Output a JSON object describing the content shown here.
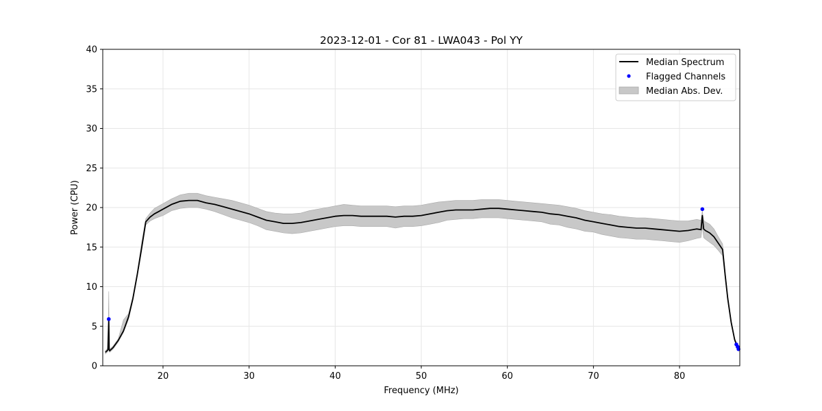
{
  "chart_data": {
    "type": "line",
    "title": "2023-12-01 - Cor 81 - LWA043 - Pol YY",
    "xlabel": "Frequency (MHz)",
    "ylabel": "Power (CPU)",
    "xlim": [
      13,
      87
    ],
    "ylim": [
      0,
      40
    ],
    "xticks": [
      20,
      30,
      40,
      50,
      60,
      70,
      80
    ],
    "yticks": [
      0,
      5,
      10,
      15,
      20,
      25,
      30,
      35,
      40
    ],
    "grid": true,
    "legend_position": "top-right",
    "series": [
      {
        "name": "Median Spectrum",
        "kind": "line",
        "color": "#000000",
        "x": [
          13.3,
          13.6,
          13.7,
          13.75,
          13.8,
          14.2,
          14.8,
          15.4,
          16.0,
          16.5,
          17.0,
          17.5,
          18.0,
          18.5,
          19.0,
          19.5,
          20.0,
          21.0,
          22.0,
          23.0,
          24.0,
          25.0,
          26.0,
          27.0,
          28.0,
          29.0,
          30.0,
          31.0,
          32.0,
          33.0,
          34.0,
          35.0,
          36.0,
          37.0,
          38.0,
          39.0,
          40.0,
          41.0,
          42.0,
          43.0,
          44.0,
          45.0,
          46.0,
          47.0,
          48.0,
          49.0,
          50.0,
          51.0,
          52.0,
          53.0,
          54.0,
          55.0,
          56.0,
          57.0,
          58.0,
          59.0,
          60.0,
          61.0,
          62.0,
          63.0,
          64.0,
          65.0,
          66.0,
          67.0,
          68.0,
          69.0,
          70.0,
          71.0,
          72.0,
          73.0,
          74.0,
          75.0,
          76.0,
          77.0,
          78.0,
          79.0,
          80.0,
          81.0,
          82.0,
          82.5,
          82.65,
          82.8,
          83.0,
          83.5,
          84.0,
          84.5,
          85.0,
          85.3,
          85.6,
          86.0,
          86.4,
          86.8
        ],
        "y": [
          1.7,
          2.0,
          5.8,
          2.0,
          1.9,
          2.3,
          3.2,
          4.4,
          6.2,
          8.5,
          11.5,
          14.8,
          18.2,
          18.8,
          19.2,
          19.5,
          19.8,
          20.4,
          20.8,
          20.9,
          20.9,
          20.6,
          20.4,
          20.1,
          19.8,
          19.5,
          19.2,
          18.8,
          18.4,
          18.2,
          18.0,
          18.0,
          18.1,
          18.3,
          18.5,
          18.7,
          18.9,
          19.0,
          19.0,
          18.9,
          18.9,
          18.9,
          18.9,
          18.8,
          18.9,
          18.9,
          19.0,
          19.2,
          19.4,
          19.6,
          19.7,
          19.7,
          19.7,
          19.8,
          19.9,
          19.9,
          19.8,
          19.7,
          19.6,
          19.5,
          19.4,
          19.2,
          19.1,
          18.9,
          18.7,
          18.4,
          18.2,
          18.0,
          17.8,
          17.6,
          17.5,
          17.4,
          17.4,
          17.3,
          17.2,
          17.1,
          17.0,
          17.1,
          17.3,
          17.2,
          19.0,
          17.3,
          17.1,
          16.8,
          16.3,
          15.5,
          14.7,
          11.5,
          8.5,
          5.5,
          3.3,
          2.2
        ]
      },
      {
        "name": "Flagged Channels",
        "kind": "scatter",
        "color": "#0000ff",
        "x": [
          13.7,
          82.65,
          86.6,
          86.75,
          86.85
        ],
        "y": [
          5.9,
          19.8,
          2.7,
          2.4,
          2.1
        ]
      },
      {
        "name": "Median Abs. Dev.",
        "kind": "band",
        "color": "#c8c8c8",
        "x": [
          13.3,
          13.6,
          13.7,
          13.75,
          13.8,
          14.2,
          14.8,
          15.4,
          16.0,
          16.5,
          17.0,
          17.5,
          18.0,
          18.5,
          19.0,
          19.5,
          20.0,
          21.0,
          22.0,
          23.0,
          24.0,
          25.0,
          26.0,
          27.0,
          28.0,
          29.0,
          30.0,
          31.0,
          32.0,
          33.0,
          34.0,
          35.0,
          36.0,
          37.0,
          38.0,
          39.0,
          40.0,
          41.0,
          42.0,
          43.0,
          44.0,
          45.0,
          46.0,
          47.0,
          48.0,
          49.0,
          50.0,
          51.0,
          52.0,
          53.0,
          54.0,
          55.0,
          56.0,
          57.0,
          58.0,
          59.0,
          60.0,
          61.0,
          62.0,
          63.0,
          64.0,
          65.0,
          66.0,
          67.0,
          68.0,
          69.0,
          70.0,
          71.0,
          72.0,
          73.0,
          74.0,
          75.0,
          76.0,
          77.0,
          78.0,
          79.0,
          80.0,
          81.0,
          82.0,
          82.5,
          82.65,
          82.8,
          83.0,
          83.5,
          84.0,
          84.5,
          85.0,
          85.3,
          85.6,
          86.0,
          86.4,
          86.8
        ],
        "lower": [
          1.5,
          1.8,
          2.6,
          1.8,
          1.7,
          2.1,
          3.0,
          4.2,
          5.9,
          8.2,
          11.2,
          14.4,
          17.8,
          18.3,
          18.6,
          18.8,
          19.0,
          19.6,
          19.9,
          20.0,
          20.0,
          19.8,
          19.5,
          19.1,
          18.7,
          18.4,
          18.1,
          17.7,
          17.2,
          17.0,
          16.8,
          16.7,
          16.8,
          17.0,
          17.2,
          17.4,
          17.6,
          17.7,
          17.7,
          17.6,
          17.6,
          17.6,
          17.6,
          17.4,
          17.6,
          17.6,
          17.7,
          17.9,
          18.1,
          18.4,
          18.5,
          18.6,
          18.6,
          18.7,
          18.7,
          18.7,
          18.6,
          18.5,
          18.4,
          18.3,
          18.2,
          17.9,
          17.8,
          17.5,
          17.3,
          17.0,
          16.9,
          16.6,
          16.4,
          16.2,
          16.1,
          16.0,
          16.0,
          15.9,
          15.8,
          15.7,
          15.6,
          15.8,
          16.1,
          16.2,
          17.6,
          16.2,
          16.0,
          15.6,
          15.2,
          14.6,
          13.9,
          11.0,
          8.1,
          5.2,
          3.1,
          2.1
        ],
        "upper": [
          1.9,
          2.2,
          9.4,
          2.2,
          2.1,
          2.5,
          3.4,
          5.8,
          6.6,
          8.8,
          11.8,
          15.5,
          18.6,
          19.3,
          19.9,
          20.2,
          20.5,
          21.1,
          21.6,
          21.8,
          21.8,
          21.5,
          21.3,
          21.1,
          20.9,
          20.6,
          20.3,
          19.9,
          19.5,
          19.3,
          19.2,
          19.2,
          19.3,
          19.6,
          19.8,
          20.0,
          20.2,
          20.4,
          20.3,
          20.2,
          20.2,
          20.2,
          20.2,
          20.1,
          20.2,
          20.2,
          20.3,
          20.5,
          20.7,
          20.8,
          20.9,
          20.9,
          20.9,
          21.0,
          21.0,
          21.0,
          20.9,
          20.8,
          20.7,
          20.6,
          20.5,
          20.4,
          20.3,
          20.1,
          19.9,
          19.6,
          19.4,
          19.2,
          19.1,
          18.9,
          18.8,
          18.7,
          18.7,
          18.6,
          18.5,
          18.4,
          18.3,
          18.3,
          18.5,
          18.4,
          19.6,
          18.4,
          18.2,
          17.9,
          17.3,
          16.3,
          15.4,
          12.0,
          8.9,
          5.8,
          3.5,
          2.4
        ]
      }
    ]
  }
}
